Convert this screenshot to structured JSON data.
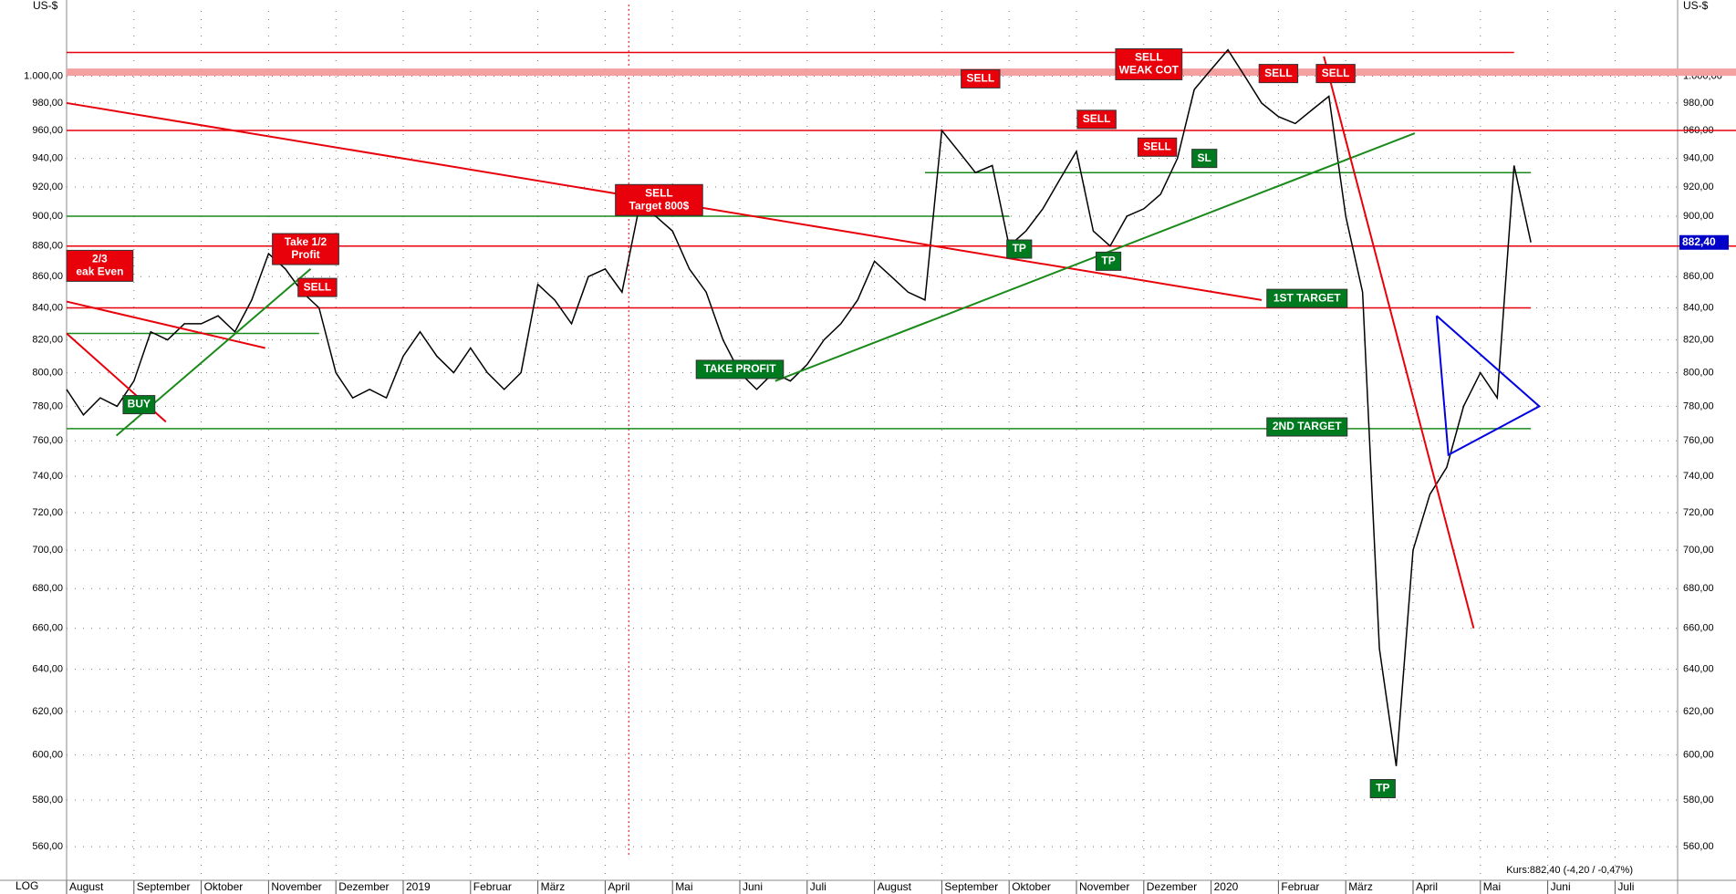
{
  "chart_data": {
    "type": "line",
    "y_unit": "US-$",
    "log_scale": true,
    "grid": true,
    "scale_label": "LOG",
    "footer": "Kurs:882,40 (-4,20 / -0,47%)",
    "price_tag": {
      "value": 882.4,
      "label": "882,40"
    },
    "ylim": [
      546,
      1059
    ],
    "yticks": [
      {
        "value": 560,
        "label": "560,00"
      },
      {
        "value": 580,
        "label": "580,00"
      },
      {
        "value": 600,
        "label": "600,00"
      },
      {
        "value": 620,
        "label": "620,00"
      },
      {
        "value": 640,
        "label": "640,00"
      },
      {
        "value": 660,
        "label": "660,00"
      },
      {
        "value": 680,
        "label": "680,00"
      },
      {
        "value": 700,
        "label": "700,00"
      },
      {
        "value": 720,
        "label": "720,00"
      },
      {
        "value": 740,
        "label": "740,00"
      },
      {
        "value": 760,
        "label": "760,00"
      },
      {
        "value": 780,
        "label": "780,00"
      },
      {
        "value": 800,
        "label": "800,00"
      },
      {
        "value": 820,
        "label": "820,00"
      },
      {
        "value": 840,
        "label": "840,00"
      },
      {
        "value": 860,
        "label": "860,00"
      },
      {
        "value": 880,
        "label": "880,00"
      },
      {
        "value": 900,
        "label": "900,00"
      },
      {
        "value": 920,
        "label": "920,00"
      },
      {
        "value": 940,
        "label": "940,00"
      },
      {
        "value": 960,
        "label": "960,00"
      },
      {
        "value": 980,
        "label": "980,00"
      },
      {
        "value": 1000,
        "label": "1.000,00"
      }
    ],
    "categories": [
      "August",
      null,
      null,
      null,
      "September",
      null,
      null,
      null,
      "Oktober",
      null,
      null,
      null,
      "November",
      null,
      null,
      null,
      "Dezember",
      null,
      null,
      null,
      "2019",
      null,
      null,
      null,
      "Februar",
      null,
      null,
      null,
      "März",
      null,
      null,
      null,
      "April",
      null,
      null,
      null,
      "Mai",
      null,
      null,
      null,
      "Juni",
      null,
      null,
      null,
      "Juli",
      null,
      null,
      null,
      "August",
      null,
      null,
      null,
      "September",
      null,
      null,
      null,
      "Oktober",
      null,
      null,
      null,
      "November",
      null,
      null,
      null,
      "Dezember",
      null,
      null,
      null,
      "2020",
      null,
      null,
      null,
      "Februar",
      null,
      null,
      null,
      "März",
      null,
      null,
      null,
      "April",
      null,
      null,
      null,
      "Mai",
      null,
      null,
      null,
      "Juni",
      null,
      null,
      null,
      "Juli"
    ],
    "series": [
      {
        "name": "Kurs",
        "color": "#000000",
        "values": [
          790,
          775,
          785,
          780,
          795,
          825,
          820,
          830,
          830,
          835,
          825,
          845,
          875,
          865,
          850,
          840,
          800,
          785,
          790,
          785,
          810,
          825,
          810,
          800,
          815,
          800,
          790,
          800,
          855,
          845,
          830,
          860,
          865,
          850,
          905,
          900,
          890,
          865,
          850,
          820,
          800,
          790,
          800,
          795,
          805,
          820,
          830,
          845,
          870,
          860,
          850,
          845,
          960,
          945,
          930,
          935,
          880,
          890,
          905,
          925,
          945,
          890,
          880,
          900,
          905,
          915,
          940,
          990,
          1005,
          1020,
          1000,
          980,
          970,
          965,
          975,
          985,
          900,
          850,
          650,
          595,
          700,
          730,
          745,
          780,
          800,
          785,
          935,
          882.4,
          null,
          null,
          null,
          null,
          null
        ]
      }
    ],
    "hlines": [
      {
        "value": 1018,
        "color": "#e8000b",
        "from": 0,
        "to": 86
      },
      {
        "value": 1003,
        "color": "#f4a0a0",
        "from": 0,
        "to": 100,
        "width": 8
      },
      {
        "value": 960,
        "color": "#e8000b",
        "from": 0,
        "to": 100
      },
      {
        "value": 930,
        "color": "#1a8a1a",
        "from": 51,
        "to": 87
      },
      {
        "value": 900,
        "color": "#1a8a1a",
        "from": 0,
        "to": 56
      },
      {
        "value": 880,
        "color": "#e8000b",
        "from": 0,
        "to": 100
      },
      {
        "value": 840,
        "color": "#e8000b",
        "from": 0,
        "to": 87
      },
      {
        "value": 824,
        "color": "#1a8a1a",
        "from": 0,
        "to": 15
      },
      {
        "value": 767,
        "color": "#1a8a1a",
        "from": 0,
        "to": 87
      }
    ],
    "trendlines": [
      {
        "color": "#e8000b",
        "points": [
          [
            0,
            980
          ],
          [
            71,
            845
          ]
        ]
      },
      {
        "color": "#1a8a1a",
        "points": [
          [
            42.1,
            795
          ],
          [
            80.1,
            958
          ]
        ]
      },
      {
        "color": "#e8000b",
        "points": [
          [
            74.7,
            1015
          ],
          [
            83.6,
            660
          ]
        ]
      },
      {
        "color": "#e8000b",
        "points": [
          [
            0,
            824
          ],
          [
            5.9,
            771
          ]
        ]
      },
      {
        "color": "#e8000b",
        "points": [
          [
            0,
            844
          ],
          [
            11.8,
            815
          ]
        ]
      },
      {
        "color": "#1a8a1a",
        "points": [
          [
            2.96,
            763
          ],
          [
            14.5,
            865
          ]
        ]
      },
      {
        "color": "#0000e0",
        "points": [
          [
            81.4,
            835
          ],
          [
            87.5,
            780
          ],
          [
            82.1,
            752
          ],
          [
            81.4,
            835
          ]
        ]
      }
    ],
    "vline": 33.4,
    "annotations": [
      {
        "text": [
          "BUY"
        ],
        "color": "#007a1f",
        "x": 4.3,
        "y": 781
      },
      {
        "text": [
          "SELL"
        ],
        "color": "#e8000b",
        "x": 54.3,
        "y": 998
      },
      {
        "text": [
          "SELL",
          "WEAK COT"
        ],
        "color": "#e8000b",
        "x": 64.3,
        "y": 1009
      },
      {
        "text": [
          "SELL"
        ],
        "color": "#e8000b",
        "x": 72,
        "y": 1002
      },
      {
        "text": [
          "SELL"
        ],
        "color": "#e8000b",
        "x": 75.4,
        "y": 1002
      },
      {
        "text": [
          "SELL"
        ],
        "color": "#e8000b",
        "x": 61.2,
        "y": 968
      },
      {
        "text": [
          "SELL"
        ],
        "color": "#e8000b",
        "x": 64.8,
        "y": 948
      },
      {
        "text": [
          "SL"
        ],
        "color": "#007a1f",
        "x": 67.6,
        "y": 940
      },
      {
        "text": [
          "SELL",
          "Target 800$"
        ],
        "color": "#e8000b",
        "x": 35.2,
        "y": 911
      },
      {
        "text": [
          "TP"
        ],
        "color": "#007a1f",
        "x": 56.6,
        "y": 878
      },
      {
        "text": [
          "TP"
        ],
        "color": "#007a1f",
        "x": 61.9,
        "y": 870
      },
      {
        "text": [
          "1ST TARGET"
        ],
        "color": "#007a1f",
        "x": 73.7,
        "y": 846
      },
      {
        "text": [
          "2ND TARGET"
        ],
        "color": "#007a1f",
        "x": 73.7,
        "y": 768
      },
      {
        "text": [
          "TAKE PROFIT"
        ],
        "color": "#007a1f",
        "x": 40,
        "y": 802
      },
      {
        "text": [
          "TP"
        ],
        "color": "#007a1f",
        "x": 78.2,
        "y": 585
      },
      {
        "text": [
          "Take 1/2",
          "Profit"
        ],
        "color": "#e8000b",
        "x": 14.2,
        "y": 878
      },
      {
        "text": [
          "SELL"
        ],
        "color": "#e8000b",
        "x": 14.9,
        "y": 853
      },
      {
        "text": [
          "2/3",
          "eak Even"
        ],
        "color": "#e8000b",
        "x": 1.4,
        "y": 867
      }
    ]
  }
}
